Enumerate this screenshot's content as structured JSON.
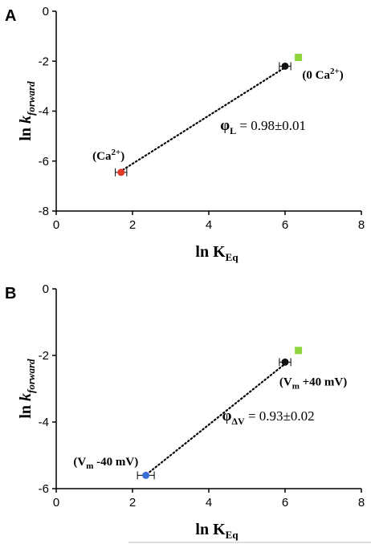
{
  "chart_data": [
    {
      "type": "scatter",
      "panel": "A",
      "xlabel": {
        "main": "ln K",
        "sub": "Eq"
      },
      "ylabel": {
        "main": "ln ",
        "italic": "k",
        "sub": "forward"
      },
      "xlim": [
        0,
        8
      ],
      "ylim": [
        -8,
        0
      ],
      "xticks": [
        "0",
        "2",
        "4",
        "6",
        "8"
      ],
      "yticks": [
        "0",
        "-2",
        "-4",
        "-6",
        "-8"
      ],
      "points": [
        {
          "x": 1.7,
          "y": -6.45,
          "xerr": 0.15,
          "color": "#e03a2a",
          "marker": "circle"
        },
        {
          "x": 6.0,
          "y": -2.2,
          "xerr": 0.15,
          "color": "#111111",
          "marker": "circle"
        },
        {
          "x": 6.35,
          "y": -1.85,
          "xerr": 0.0,
          "color": "#8ed43a",
          "marker": "square"
        }
      ],
      "fit_line": {
        "x": [
          1.75,
          6.0
        ],
        "y": [
          -6.35,
          -2.25
        ]
      },
      "annotations": [
        {
          "text": "(Ca",
          "sup": "2+",
          "close": ")",
          "x": 0.95,
          "y": -5.95
        },
        {
          "text": "(0 Ca",
          "sup": "2+",
          "close": ")",
          "x": 6.45,
          "y": -2.7
        }
      ],
      "phi": {
        "symbol": "φ",
        "sub": "L",
        "value": " = 0.98±0.01",
        "x": 4.3,
        "y": -4.75
      }
    },
    {
      "type": "scatter",
      "panel": "B",
      "xlabel": {
        "main": "ln K",
        "sub": "Eq"
      },
      "ylabel": {
        "main": "ln ",
        "italic": "k",
        "sub": "forward"
      },
      "xlim": [
        0,
        8
      ],
      "ylim": [
        -6,
        0
      ],
      "xticks": [
        "0",
        "2",
        "4",
        "6",
        "8"
      ],
      "yticks": [
        "0",
        "-2",
        "-4",
        "-6"
      ],
      "points": [
        {
          "x": 2.35,
          "y": -5.6,
          "xerr": 0.22,
          "color": "#3b6fd4",
          "marker": "circle"
        },
        {
          "x": 6.0,
          "y": -2.2,
          "xerr": 0.15,
          "color": "#111111",
          "marker": "circle"
        },
        {
          "x": 6.35,
          "y": -1.85,
          "xerr": 0.0,
          "color": "#8ed43a",
          "marker": "square"
        }
      ],
      "fit_line": {
        "x": [
          2.45,
          6.0
        ],
        "y": [
          -5.5,
          -2.25
        ]
      },
      "annotations": [
        {
          "text": "(V",
          "sub": "m",
          "rest": " +40 mV)",
          "x": 5.85,
          "y": -2.9
        },
        {
          "text": "(V",
          "sub": "m",
          "rest": " -40 mV)",
          "x": 0.45,
          "y": -5.3
        }
      ],
      "phi": {
        "symbol": "φ",
        "sub": "ΔV",
        "value": " = 0.93±0.02",
        "x": 4.35,
        "y": -3.95
      }
    }
  ],
  "panel_letters": [
    "A",
    "B"
  ]
}
